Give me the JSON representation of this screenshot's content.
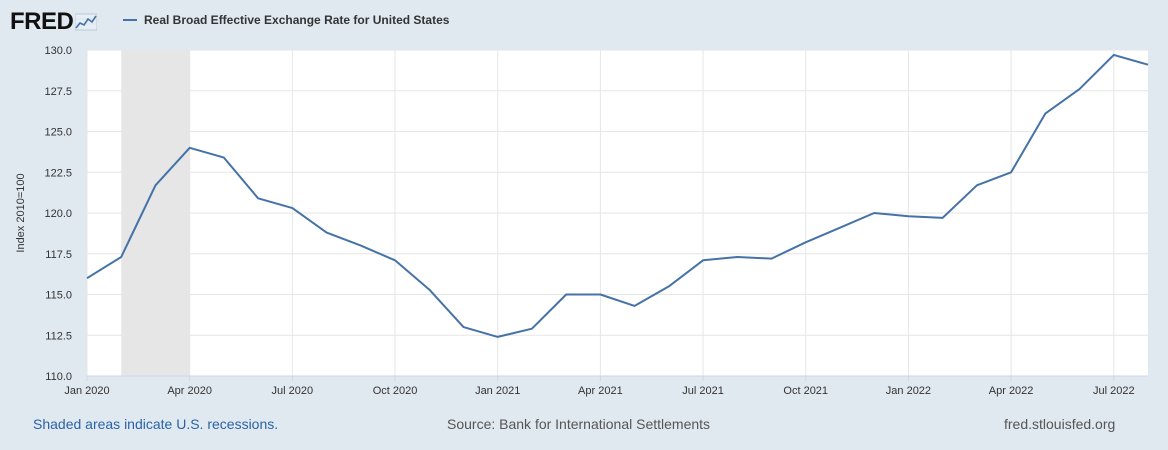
{
  "header": {
    "logo_text": "FRED",
    "logo_icon": "fred-chart-icon",
    "series_color": "#4572a7"
  },
  "chart_data": {
    "type": "line",
    "title": "Real Broad Effective Exchange Rate for United States",
    "xlabel": "",
    "ylabel": "Index 2010=100",
    "ylim": [
      110,
      130
    ],
    "y_ticks": [
      110.0,
      112.5,
      115.0,
      117.5,
      120.0,
      122.5,
      125.0,
      127.5,
      130.0
    ],
    "y_tick_labels": [
      "110.0",
      "112.5",
      "115.0",
      "117.5",
      "120.0",
      "122.5",
      "125.0",
      "127.5",
      "130.0"
    ],
    "x_tick_labels": [
      "Jan 2020",
      "Apr 2020",
      "Jul 2020",
      "Oct 2020",
      "Jan 2021",
      "Apr 2021",
      "Jul 2021",
      "Oct 2021",
      "Jan 2022",
      "Apr 2022",
      "Jul 2022"
    ],
    "x": [
      "2020-01",
      "2020-02",
      "2020-03",
      "2020-04",
      "2020-05",
      "2020-06",
      "2020-07",
      "2020-08",
      "2020-09",
      "2020-10",
      "2020-11",
      "2020-12",
      "2021-01",
      "2021-02",
      "2021-03",
      "2021-04",
      "2021-05",
      "2021-06",
      "2021-07",
      "2021-08",
      "2021-09",
      "2021-10",
      "2021-11",
      "2021-12",
      "2022-01",
      "2022-02",
      "2022-03",
      "2022-04",
      "2022-05",
      "2022-06",
      "2022-07",
      "2022-08"
    ],
    "series": [
      {
        "name": "Real Broad Effective Exchange Rate for United States",
        "color": "#4572a7",
        "values": [
          116.0,
          117.3,
          121.7,
          124.0,
          123.4,
          120.9,
          120.3,
          118.8,
          118.0,
          117.1,
          115.3,
          113.0,
          112.4,
          112.9,
          115.0,
          115.0,
          114.3,
          115.5,
          117.1,
          117.3,
          117.2,
          118.2,
          119.1,
          120.0,
          119.8,
          119.7,
          121.7,
          122.5,
          126.1,
          127.6,
          129.7,
          129.1
        ]
      }
    ],
    "recession": {
      "start": "2020-02",
      "end": "2020-04",
      "color": "#e6e6e6"
    },
    "grid": true,
    "legend": "top-left"
  },
  "footer": {
    "recession_note": "Shaded areas indicate U.S. recessions.",
    "source": "Source: Bank for International Settlements",
    "site": "fred.stlouisfed.org"
  }
}
